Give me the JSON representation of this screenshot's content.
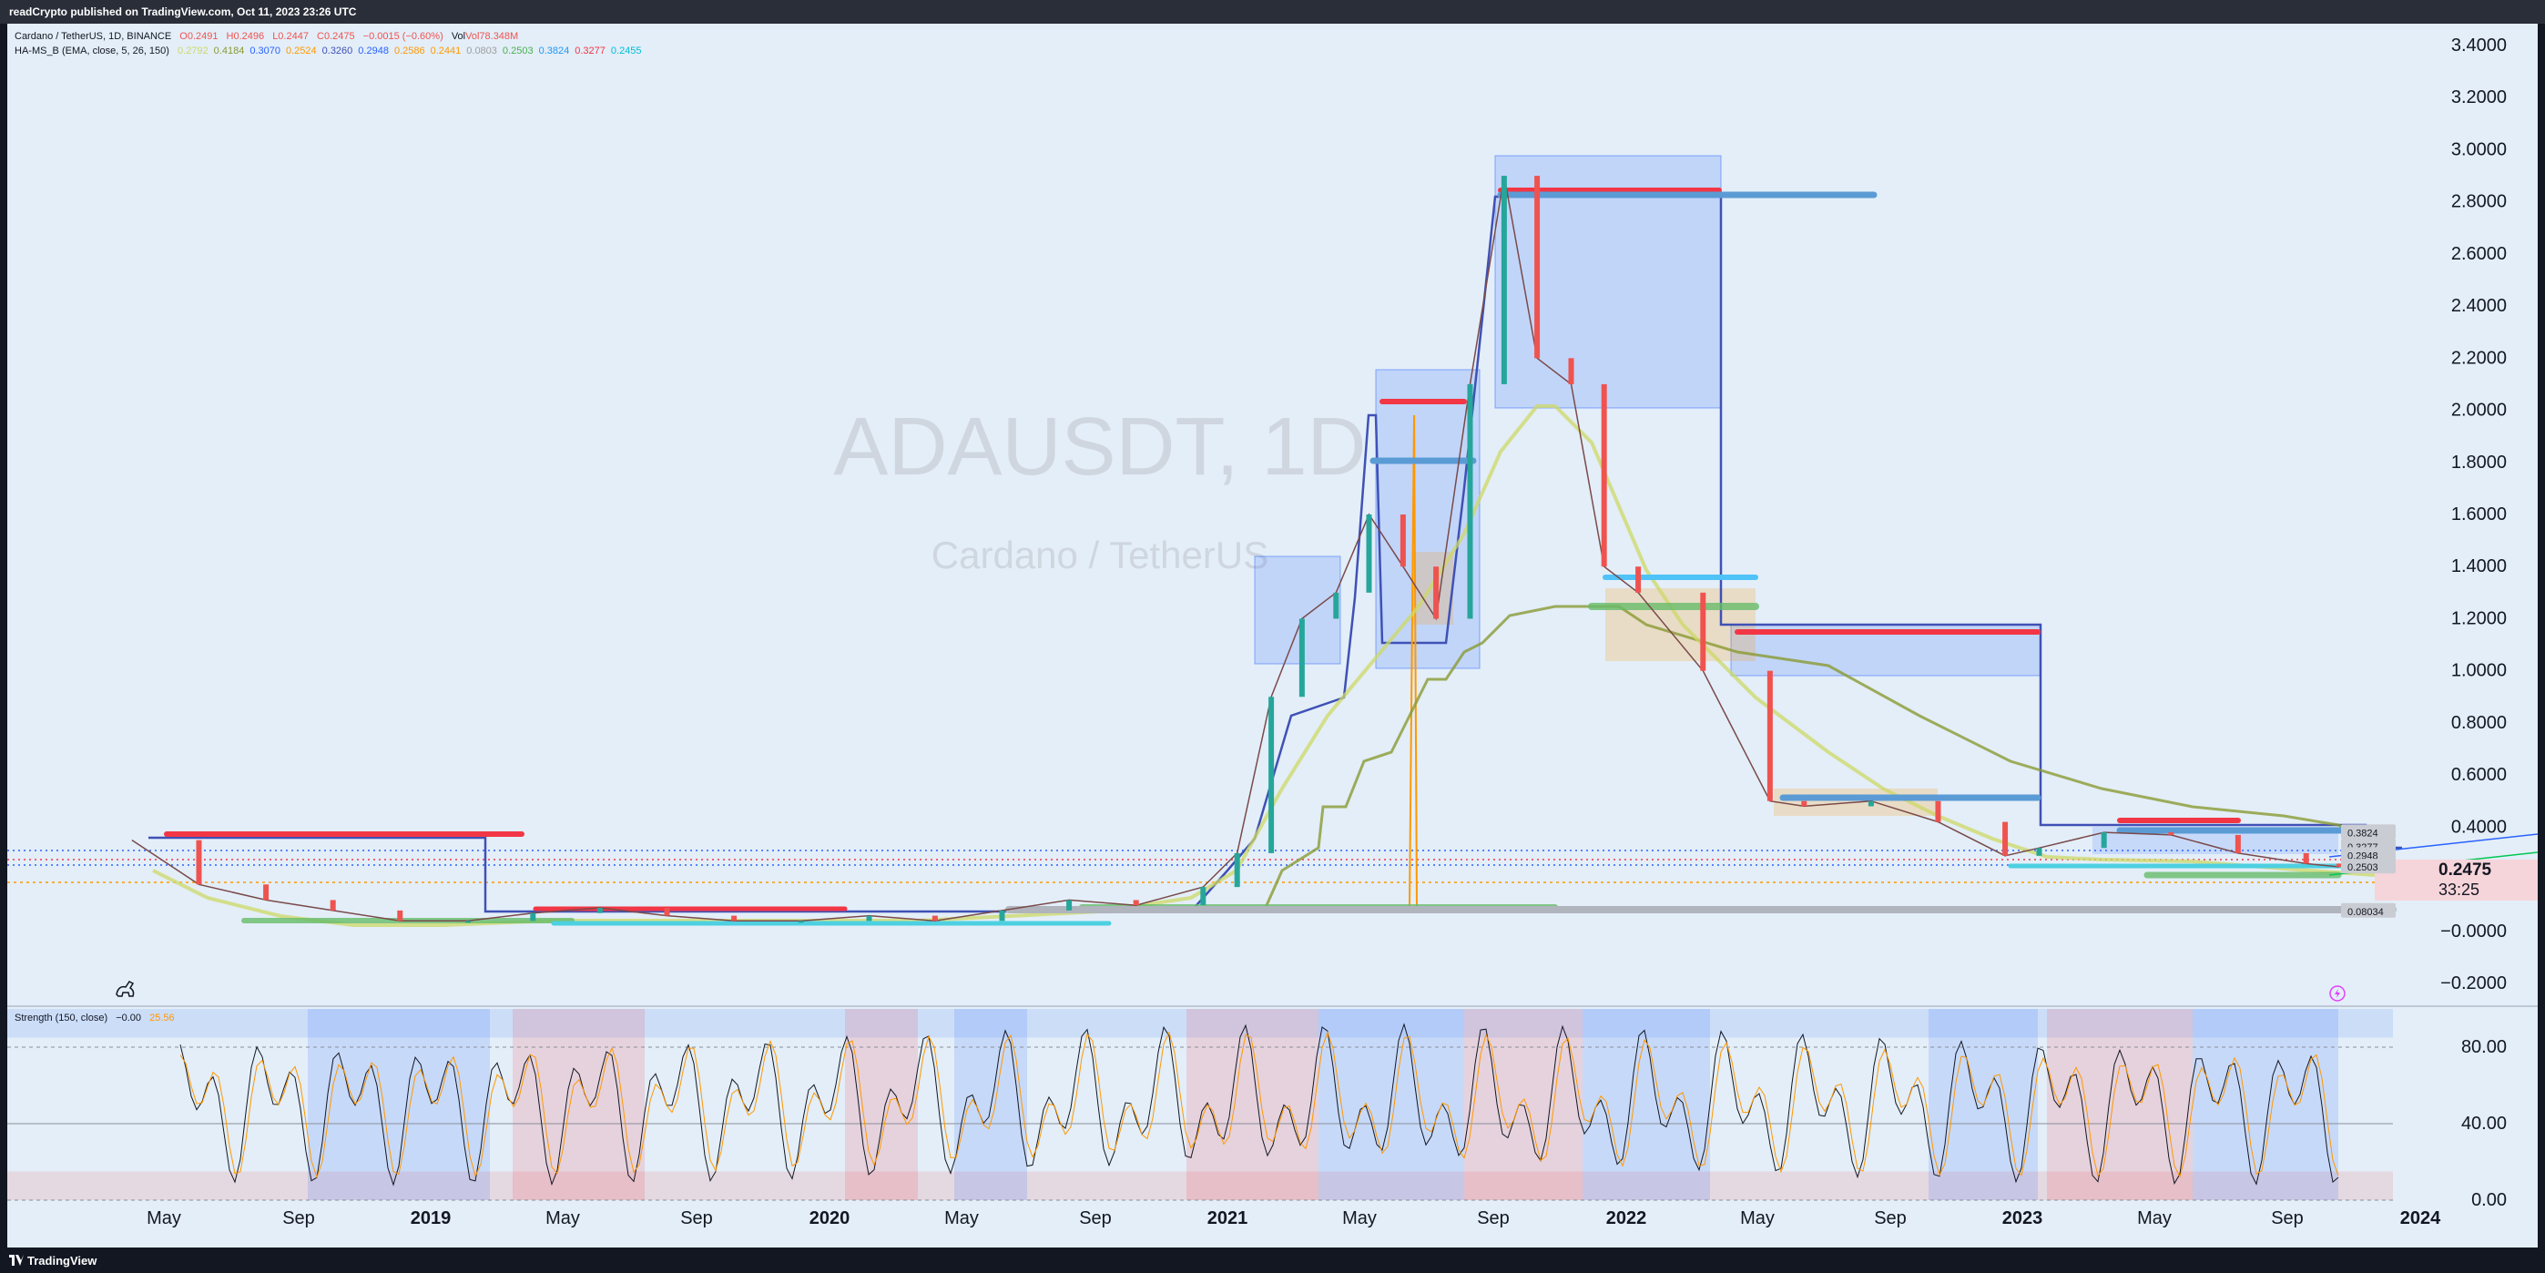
{
  "header": {
    "published": "readCrypto published on TradingView.com, Oct 11, 2023 23:26 UTC"
  },
  "footer": {
    "brand": "TradingView"
  },
  "legend": {
    "symbol": "Cardano / TetherUS, 1D, BINANCE",
    "o": "O0.2491",
    "h": "H0.2496",
    "l": "L0.2447",
    "c": "C0.2475",
    "change": "−0.0015 (−0.60%)",
    "vol": "Vol78.348M",
    "indicator": "HA-MS_B (EMA, close, 5, 26, 150)",
    "ind_values": [
      {
        "text": "0.2792",
        "color": "#cdd866"
      },
      {
        "text": "0.4184",
        "color": "#8a9a32"
      },
      {
        "text": "0.3070",
        "color": "#2962ff"
      },
      {
        "text": "0.2524",
        "color": "#ff9800"
      },
      {
        "text": "0.3260",
        "color": "#3f51b5"
      },
      {
        "text": "0.2948",
        "color": "#2962ff"
      },
      {
        "text": "0.2586",
        "color": "#ff9800"
      },
      {
        "text": "0.2441",
        "color": "#ff9800"
      },
      {
        "text": "0.0803",
        "color": "#9e9e9e"
      },
      {
        "text": "0.2503",
        "color": "#4caf50"
      },
      {
        "text": "0.3824",
        "color": "#2196f3"
      },
      {
        "text": "0.3277",
        "color": "#f23645"
      },
      {
        "text": "0.2455",
        "color": "#00bcd4"
      }
    ]
  },
  "watermark": {
    "ticker": "ADAUSDT, 1D",
    "name": "Cardano / TetherUS"
  },
  "price_scale": {
    "ticks": [
      "3.4000",
      "3.2000",
      "3.0000",
      "2.8000",
      "2.6000",
      "2.4000",
      "2.2000",
      "2.0000",
      "1.8000",
      "1.6000",
      "1.4000",
      "1.2000",
      "1.0000",
      "0.8000",
      "0.6000",
      "0.4000",
      "0.2000",
      "−0.0000",
      "−0.2000"
    ],
    "current_price": "0.2475",
    "countdown": "33:25",
    "badges": [
      "0.3277",
      "0.3824",
      "0.2948",
      "0.2503",
      "0.08034"
    ]
  },
  "time_axis": [
    "May",
    "Sep",
    "2019",
    "May",
    "Sep",
    "2020",
    "May",
    "Sep",
    "2021",
    "May",
    "Sep",
    "2022",
    "May",
    "Sep",
    "2023",
    "May",
    "Sep",
    "2024"
  ],
  "indicator_pane": {
    "title": "Strength (150, close)",
    "value1": "−0.00",
    "value2": "25.56",
    "ticks": [
      "80.00",
      "40.00",
      "0.00"
    ]
  },
  "colors": {
    "background": "#e3eef8",
    "up": "#26a69a",
    "down": "#ef5350",
    "ema_fast": "#cdd866",
    "ema_slow": "#8a9a32",
    "box_blue": "#2962ff",
    "orange": "#ff9800"
  },
  "chart_data": {
    "type": "line",
    "title": "Cardano / TetherUS, 1D, BINANCE",
    "ylim": [
      -0.2,
      3.4
    ],
    "x": [
      "2018-04",
      "2018-06",
      "2018-08",
      "2018-10",
      "2018-12",
      "2019-02",
      "2019-04",
      "2019-06",
      "2019-08",
      "2019-10",
      "2019-12",
      "2020-02",
      "2020-04",
      "2020-06",
      "2020-08",
      "2020-10",
      "2020-12",
      "2021-01",
      "2021-02",
      "2021-03",
      "2021-04",
      "2021-05",
      "2021-06",
      "2021-07",
      "2021-08",
      "2021-09",
      "2021-10",
      "2021-11",
      "2021-12",
      "2022-01",
      "2022-03",
      "2022-05",
      "2022-06",
      "2022-08",
      "2022-10",
      "2022-12",
      "2023-01",
      "2023-03",
      "2023-05",
      "2023-07",
      "2023-09",
      "2023-10"
    ],
    "series": [
      {
        "name": "ADAUSDT",
        "values": [
          0.35,
          0.18,
          0.12,
          0.08,
          0.04,
          0.04,
          0.07,
          0.09,
          0.06,
          0.04,
          0.04,
          0.06,
          0.04,
          0.08,
          0.12,
          0.1,
          0.17,
          0.3,
          0.9,
          1.2,
          1.3,
          1.6,
          1.4,
          1.2,
          2.1,
          2.9,
          2.2,
          2.1,
          1.4,
          1.3,
          1.0,
          0.5,
          0.48,
          0.5,
          0.42,
          0.29,
          0.32,
          0.38,
          0.37,
          0.3,
          0.26,
          0.2475
        ]
      }
    ]
  }
}
